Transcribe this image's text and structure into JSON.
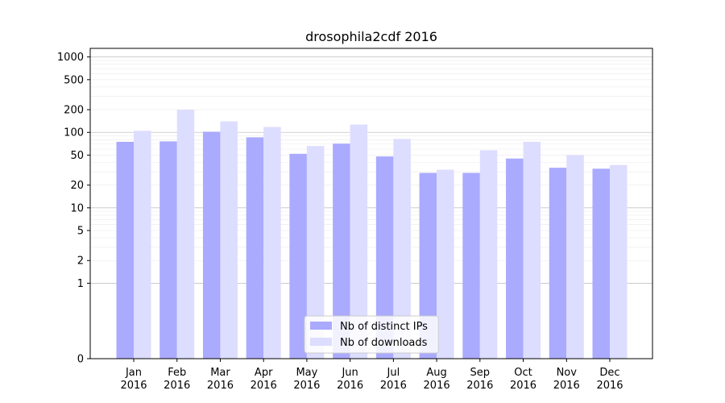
{
  "chart_data": {
    "type": "bar",
    "title": "drosophila2cdf 2016",
    "xlabel": "",
    "ylabel": "",
    "yscale": "symlog",
    "ylim": [
      0,
      1300
    ],
    "yticks": [
      0,
      1,
      2,
      5,
      10,
      20,
      50,
      100,
      200,
      500,
      1000
    ],
    "ytick_labels": [
      "0",
      "1",
      "2",
      "5",
      "10",
      "20",
      "50",
      "100",
      "200",
      "500",
      "1000"
    ],
    "grid": true,
    "legend_position": "lower center",
    "categories": [
      {
        "month": "Jan",
        "year": "2016"
      },
      {
        "month": "Feb",
        "year": "2016"
      },
      {
        "month": "Mar",
        "year": "2016"
      },
      {
        "month": "Apr",
        "year": "2016"
      },
      {
        "month": "May",
        "year": "2016"
      },
      {
        "month": "Jun",
        "year": "2016"
      },
      {
        "month": "Jul",
        "year": "2016"
      },
      {
        "month": "Aug",
        "year": "2016"
      },
      {
        "month": "Sep",
        "year": "2016"
      },
      {
        "month": "Oct",
        "year": "2016"
      },
      {
        "month": "Nov",
        "year": "2016"
      },
      {
        "month": "Dec",
        "year": "2016"
      }
    ],
    "series": [
      {
        "name": "Nb of distinct IPs",
        "color": "#aaaaff",
        "values": [
          75,
          76,
          102,
          86,
          52,
          71,
          48,
          29,
          29,
          45,
          34,
          33
        ]
      },
      {
        "name": "Nb of downloads",
        "color": "#ddddff",
        "values": [
          105,
          200,
          140,
          118,
          66,
          127,
          82,
          32,
          58,
          75,
          50,
          37
        ]
      }
    ]
  }
}
